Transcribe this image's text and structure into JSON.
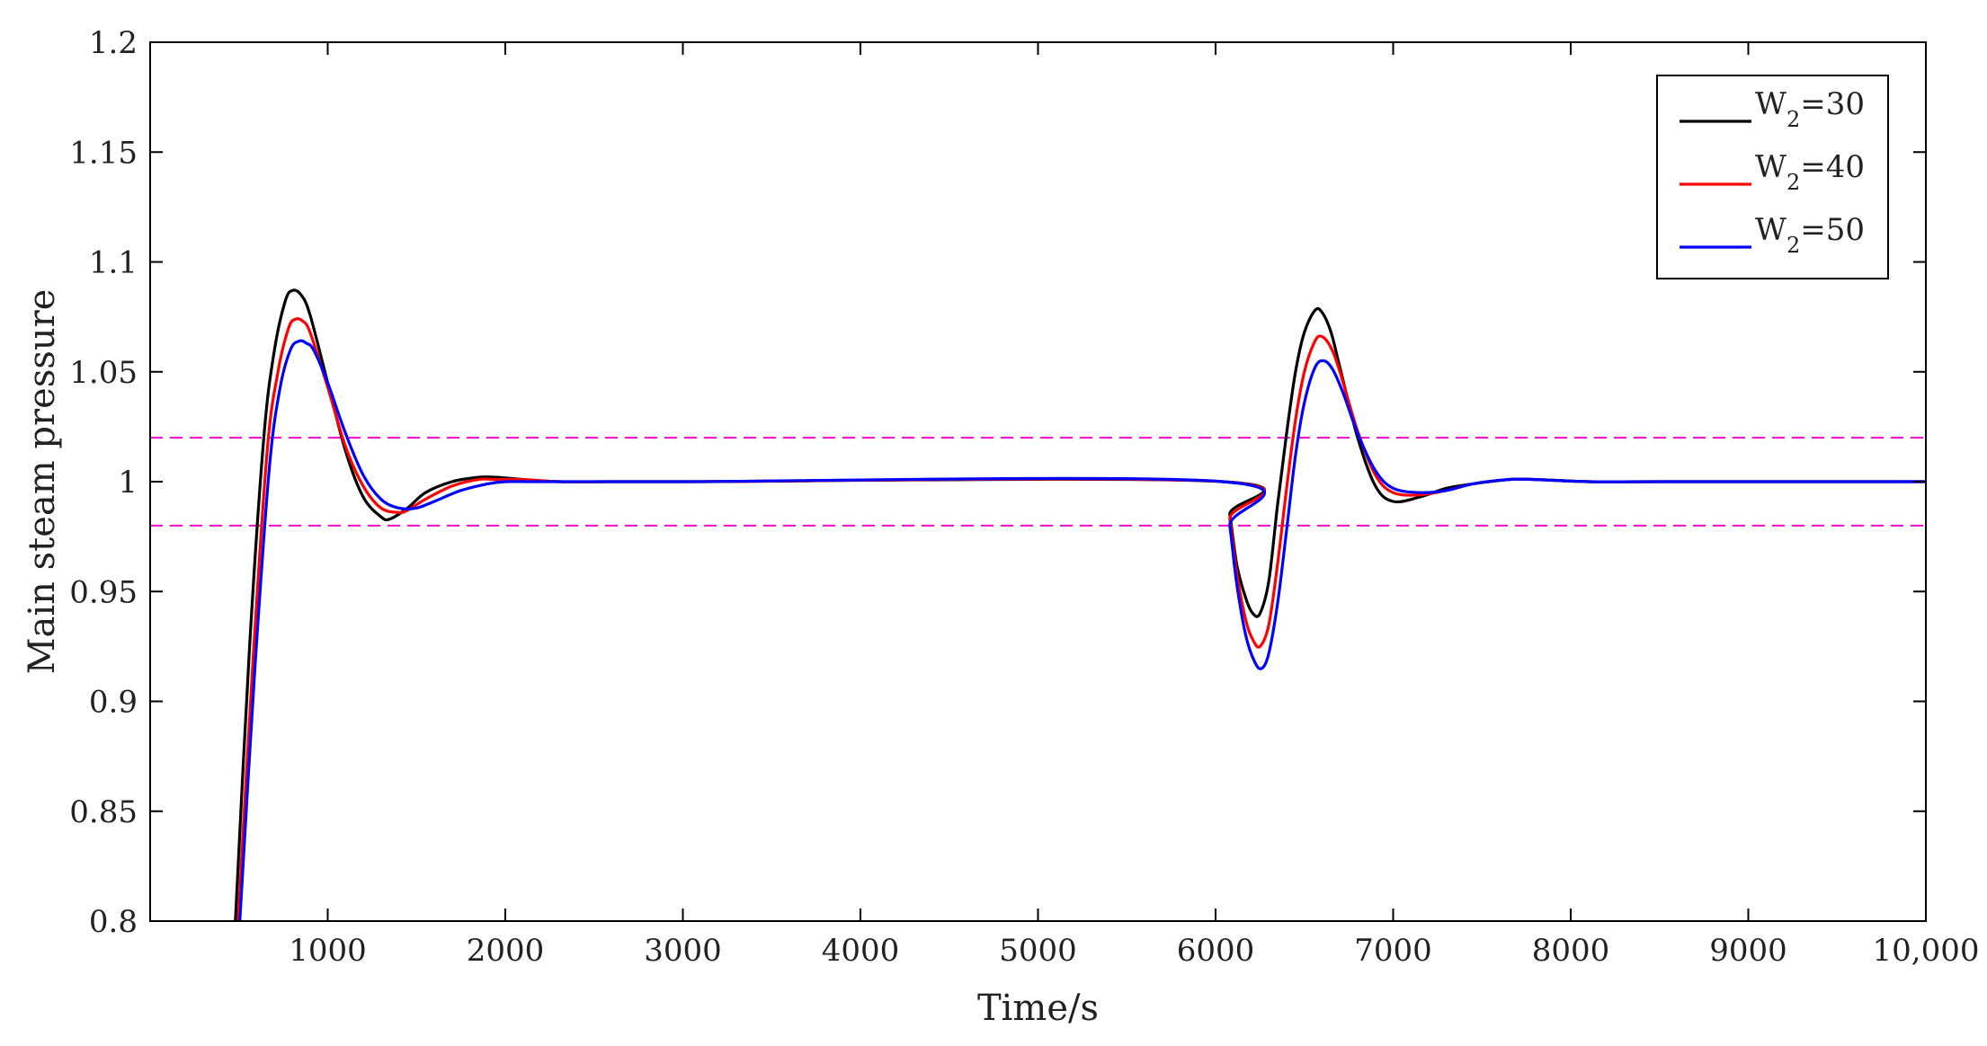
{
  "chart_data": {
    "type": "line",
    "title": "",
    "xlabel": "Time/s",
    "ylabel": "Main steam pressure",
    "xlim": [
      0,
      10000
    ],
    "ylim": [
      0.8,
      1.2
    ],
    "x_ticks": [
      1000,
      2000,
      3000,
      4000,
      5000,
      6000,
      7000,
      8000,
      9000,
      10000
    ],
    "x_tick_labels": [
      "1000",
      "2000",
      "3000",
      "4000",
      "5000",
      "6000",
      "7000",
      "8000",
      "9000",
      "10,000"
    ],
    "y_ticks": [
      0.8,
      0.85,
      0.9,
      0.95,
      1.0,
      1.05,
      1.1,
      1.15,
      1.2
    ],
    "y_tick_labels": [
      "0.8",
      "0.85",
      "0.9",
      "0.95",
      "1",
      "1.05",
      "1.1",
      "1.15",
      "1.2"
    ],
    "grid": false,
    "legend_position": "top-right",
    "reference_lines": [
      {
        "y": 1.02,
        "color": "#ff00cc",
        "style": "dashed"
      },
      {
        "y": 0.98,
        "color": "#ff00cc",
        "style": "dashed"
      }
    ],
    "series": [
      {
        "name": "W2=30",
        "legend_main": "W",
        "legend_sub": "2",
        "legend_rest": "=30",
        "color": "#000000",
        "x": [
          480,
          560,
          640,
          700,
          760,
          800,
          850,
          900,
          1000,
          1100,
          1200,
          1300,
          1350,
          1450,
          1550,
          1700,
          1850,
          1950,
          2100,
          2300,
          2600,
          3000,
          6040,
          6080,
          6120,
          6170,
          6210,
          6250,
          6300,
          6350,
          6400,
          6450,
          6500,
          6560,
          6600,
          6650,
          6700,
          6800,
          6900,
          7000,
          7150,
          7300,
          7450,
          7650,
          7800,
          8100,
          8500,
          10000
        ],
        "y": [
          0.8,
          0.925,
          1.02,
          1.06,
          1.082,
          1.087,
          1.085,
          1.076,
          1.045,
          1.014,
          0.993,
          0.984,
          0.983,
          0.988,
          0.995,
          1.0,
          1.002,
          1.002,
          1.001,
          1.0,
          1.0,
          1.0,
          1.0,
          0.985,
          0.962,
          0.947,
          0.94,
          0.94,
          0.955,
          0.99,
          1.022,
          1.05,
          1.068,
          1.078,
          1.077,
          1.068,
          1.052,
          1.02,
          0.998,
          0.991,
          0.993,
          0.997,
          0.999,
          1.001,
          1.001,
          1.0,
          1.0,
          1.0
        ]
      },
      {
        "name": "W2=40",
        "legend_main": "W",
        "legend_sub": "2",
        "legend_rest": "=40",
        "color": "#ff0000",
        "x": [
          495,
          580,
          660,
          720,
          780,
          820,
          860,
          900,
          1000,
          1100,
          1200,
          1300,
          1400,
          1450,
          1550,
          1700,
          1850,
          1950,
          2100,
          2300,
          2600,
          3000,
          6040,
          6080,
          6120,
          6170,
          6210,
          6250,
          6300,
          6350,
          6400,
          6450,
          6500,
          6560,
          6600,
          6650,
          6700,
          6800,
          6900,
          7000,
          7150,
          7300,
          7450,
          7650,
          7800,
          8100,
          8500,
          10000
        ],
        "y": [
          0.8,
          0.92,
          1.015,
          1.05,
          1.07,
          1.074,
          1.073,
          1.068,
          1.043,
          1.016,
          0.998,
          0.988,
          0.986,
          0.987,
          0.992,
          0.998,
          1.001,
          1.001,
          1.001,
          1.0,
          1.0,
          1.0,
          1.0,
          0.983,
          0.958,
          0.937,
          0.928,
          0.925,
          0.935,
          0.963,
          0.997,
          1.028,
          1.05,
          1.064,
          1.066,
          1.061,
          1.05,
          1.023,
          1.003,
          0.995,
          0.994,
          0.996,
          0.999,
          1.001,
          1.001,
          1.0,
          1.0,
          1.0
        ]
      },
      {
        "name": "W2=50",
        "legend_main": "W",
        "legend_sub": "2",
        "legend_rest": "=50",
        "color": "#0000ff",
        "x": [
          505,
          590,
          670,
          730,
          790,
          840,
          880,
          920,
          1000,
          1100,
          1200,
          1300,
          1400,
          1500,
          1600,
          1750,
          1900,
          2000,
          2150,
          2400,
          2700,
          3000,
          6040,
          6080,
          6120,
          6170,
          6220,
          6260,
          6300,
          6350,
          6400,
          6450,
          6500,
          6560,
          6610,
          6660,
          6720,
          6800,
          6900,
          7000,
          7150,
          7300,
          7450,
          7650,
          7800,
          8100,
          8500,
          10000
        ],
        "y": [
          0.8,
          0.915,
          1.005,
          1.042,
          1.06,
          1.064,
          1.063,
          1.06,
          1.045,
          1.022,
          1.003,
          0.992,
          0.988,
          0.988,
          0.991,
          0.996,
          0.999,
          1.0,
          1.0,
          1.0,
          1.0,
          1.0,
          1.0,
          0.98,
          0.953,
          0.93,
          0.918,
          0.915,
          0.922,
          0.945,
          0.978,
          1.012,
          1.036,
          1.052,
          1.055,
          1.051,
          1.04,
          1.022,
          1.005,
          0.997,
          0.995,
          0.996,
          0.999,
          1.001,
          1.001,
          1.0,
          1.0,
          1.0
        ]
      }
    ]
  }
}
